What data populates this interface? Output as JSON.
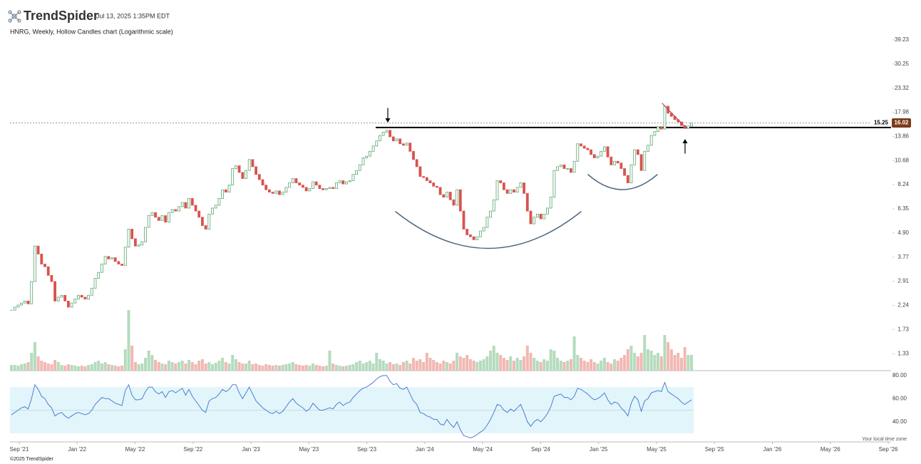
{
  "header": {
    "brand": "TrendSpider",
    "timestamp": "Jul 13, 2025 1:35PM EDT"
  },
  "chart_data": {
    "type": "candlestick",
    "title": "HNRG, Weekly, Hollow Candles chart (Logarithmic scale)",
    "log_scale": true,
    "ylim": [
      1.11,
      41.7
    ],
    "yticks": [
      39.23,
      30.25,
      23.32,
      17.98,
      13.86,
      10.68,
      8.24,
      6.35,
      {
        "value": 4.9,
        "label": "4.90"
      },
      3.77,
      2.91,
      2.24,
      1.73,
      1.33
    ],
    "xticks": [
      "Sep '21",
      "Jan '22",
      "May '22",
      "Sep '22",
      "Jan '23",
      "May '23",
      "Sep '23",
      "Jan '24",
      "May '24",
      "Sep '24",
      "Jan '25",
      "May '25",
      "Sep '25",
      "Jan '26",
      "May '26",
      "Sep '26"
    ],
    "close": [
      2.13,
      2.2,
      2.25,
      2.3,
      2.35,
      2.28,
      2.9,
      4.25,
      3.9,
      3.5,
      3.4,
      3.1,
      2.9,
      2.35,
      2.45,
      2.5,
      2.35,
      2.2,
      2.3,
      2.4,
      2.5,
      2.45,
      2.4,
      2.5,
      2.7,
      3.0,
      3.2,
      3.5,
      3.8,
      3.7,
      3.75,
      3.6,
      3.5,
      3.45,
      4.2,
      5.1,
      4.6,
      4.25,
      4.3,
      4.45,
      5.2,
      5.9,
      6.1,
      5.8,
      5.6,
      5.9,
      5.5,
      6.1,
      6.3,
      6.2,
      6.5,
      6.8,
      6.4,
      7.1,
      6.6,
      6.2,
      5.8,
      5.3,
      5.1,
      6.0,
      6.4,
      6.6,
      7.1,
      7.8,
      7.6,
      8.2,
      9.8,
      10.1,
      9.4,
      8.8,
      9.6,
      10.8,
      10.0,
      9.2,
      8.7,
      8.2,
      7.8,
      7.6,
      7.5,
      7.7,
      7.4,
      7.6,
      8.0,
      8.4,
      8.8,
      8.4,
      8.2,
      8.0,
      7.7,
      7.9,
      8.5,
      8.2,
      7.9,
      7.8,
      7.9,
      8.0,
      7.9,
      8.4,
      8.6,
      8.3,
      8.5,
      8.6,
      9.2,
      9.6,
      10.2,
      11.0,
      11.2,
      11.8,
      12.5,
      13.2,
      14.0,
      14.5,
      14.8,
      13.8,
      13.2,
      13.5,
      12.8,
      12.6,
      12.9,
      11.8,
      10.8,
      10.0,
      9.0,
      8.9,
      8.6,
      8.4,
      8.1,
      8.0,
      7.4,
      7.2,
      7.6,
      7.0,
      6.6,
      7.8,
      6.2,
      5.1,
      4.8,
      4.7,
      4.55,
      4.7,
      5.0,
      5.2,
      5.8,
      6.2,
      7.0,
      8.6,
      8.4,
      7.8,
      7.5,
      7.8,
      7.6,
      8.0,
      8.4,
      7.5,
      6.2,
      5.4,
      5.8,
      6.0,
      5.7,
      6.0,
      6.4,
      7.2,
      9.6,
      10.0,
      10.2,
      9.8,
      9.8,
      9.4,
      10.6,
      12.8,
      12.5,
      12.2,
      12.0,
      11.4,
      11.0,
      11.2,
      11.8,
      12.4,
      11.1,
      10.2,
      10.6,
      10.4,
      9.8,
      9.1,
      8.4,
      10.2,
      12.0,
      11.4,
      9.6,
      11.8,
      12.6,
      14.0,
      14.6,
      15.4,
      15.0,
      19.2,
      17.8,
      17.2,
      16.6,
      16.2,
      15.6,
      15.1,
      15.5,
      16.02
    ],
    "up_color": "#5aa66f",
    "down_color": "#d9534f",
    "last_price": 16.02,
    "last_price_color": "#7a3b1a",
    "level": 15.25,
    "level_color": "#000000",
    "volume": {
      "values": [
        8,
        8,
        7,
        9,
        10,
        12,
        25,
        40,
        20,
        14,
        12,
        10,
        9,
        15,
        12,
        8,
        7,
        9,
        8,
        7,
        6,
        7,
        6,
        8,
        9,
        12,
        14,
        10,
        12,
        9,
        8,
        7,
        6,
        7,
        30,
        85,
        35,
        12,
        9,
        10,
        18,
        28,
        22,
        15,
        12,
        10,
        9,
        14,
        12,
        10,
        12,
        14,
        10,
        15,
        12,
        9,
        14,
        16,
        10,
        12,
        9,
        11,
        14,
        18,
        12,
        10,
        22,
        16,
        12,
        10,
        10,
        14,
        9,
        10,
        8,
        7,
        9,
        8,
        7,
        8,
        7,
        8,
        9,
        10,
        12,
        9,
        8,
        7,
        8,
        7,
        10,
        8,
        7,
        6,
        7,
        28,
        10,
        8,
        7,
        6,
        7,
        8,
        9,
        12,
        14,
        10,
        12,
        14,
        10,
        25,
        16,
        14,
        10,
        12,
        9,
        10,
        8,
        12,
        14,
        10,
        18,
        14,
        16,
        12,
        25,
        18,
        15,
        12,
        10,
        14,
        12,
        10,
        14,
        25,
        20,
        18,
        22,
        16,
        14,
        12,
        14,
        16,
        20,
        28,
        35,
        25,
        22,
        18,
        15,
        20,
        14,
        18,
        15,
        20,
        35,
        25,
        18,
        14,
        12,
        16,
        14,
        30,
        28,
        18,
        14,
        12,
        14,
        16,
        48,
        22,
        18,
        14,
        12,
        16,
        12,
        10,
        14,
        18,
        12,
        10,
        16,
        14,
        18,
        22,
        30,
        35,
        25,
        20,
        25,
        50,
        30,
        28,
        22,
        25,
        20,
        50,
        40,
        30,
        22,
        25,
        18,
        33,
        22,
        22
      ],
      "up_color": "#b5dbbd",
      "down_color": "#f2b8b3"
    },
    "rsi": {
      "values": [
        46,
        48,
        50,
        52,
        53,
        51,
        60,
        72,
        68,
        62,
        60,
        55,
        52,
        45,
        47,
        48,
        45,
        43,
        45,
        47,
        48,
        47,
        46,
        47,
        50,
        55,
        58,
        61,
        60,
        60,
        58,
        56,
        55,
        54,
        67,
        72,
        63,
        59,
        59,
        60,
        66,
        70,
        70,
        66,
        64,
        66,
        61,
        66,
        67,
        65,
        67,
        69,
        63,
        68,
        62,
        58,
        54,
        50,
        48,
        58,
        60,
        61,
        64,
        68,
        66,
        68,
        72,
        72,
        65,
        60,
        65,
        70,
        64,
        58,
        55,
        52,
        50,
        48,
        47,
        49,
        47,
        49,
        53,
        57,
        60,
        56,
        54,
        52,
        49,
        51,
        56,
        53,
        50,
        50,
        51,
        52,
        51,
        55,
        57,
        54,
        56,
        57,
        61,
        64,
        67,
        69,
        70,
        72,
        74,
        77,
        79,
        80,
        80,
        75,
        72,
        73,
        69,
        68,
        70,
        64,
        58,
        55,
        48,
        47,
        45,
        44,
        42,
        42,
        38,
        37,
        42,
        38,
        35,
        40,
        33,
        28,
        27,
        26,
        27,
        29,
        31,
        33,
        37,
        42,
        48,
        55,
        54,
        50,
        48,
        51,
        49,
        52,
        55,
        48,
        40,
        36,
        40,
        42,
        40,
        43,
        47,
        53,
        62,
        63,
        64,
        61,
        61,
        59,
        62,
        69,
        68,
        66,
        64,
        61,
        59,
        60,
        62,
        65,
        59,
        55,
        57,
        56,
        52,
        49,
        45,
        56,
        62,
        59,
        49,
        58,
        60,
        65,
        66,
        67,
        66,
        74,
        66,
        64,
        62,
        60,
        57,
        55,
        57,
        59
      ],
      "color": "#4a7fd0",
      "ylim": [
        22.5,
        83
      ],
      "yticks": [
        {
          "value": 80,
          "label": "80.00"
        },
        {
          "value": 60,
          "label": "60.00"
        },
        {
          "value": 40,
          "label": "40.00"
        }
      ],
      "band": [
        30,
        70
      ],
      "band_color": "#e2f5fb"
    }
  },
  "footer": {
    "copyright": "©2025 TrendSpider",
    "timezone_note": "Your local time zone"
  }
}
